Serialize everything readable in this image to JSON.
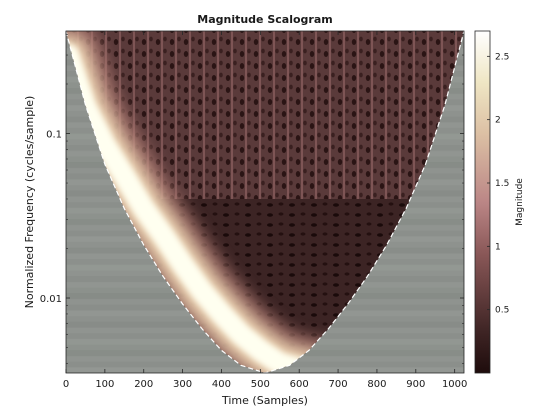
{
  "chart_data": {
    "type": "heatmap",
    "title": "Magnitude Scalogram",
    "xlabel": "Time (Samples)",
    "ylabel": "Normalized Frequency  (cycles/sample)",
    "x_scale": "linear",
    "y_scale": "log",
    "xlim": [
      0,
      1024
    ],
    "ylim": [
      0.0035,
      0.42
    ],
    "x_ticks": [
      0,
      100,
      200,
      300,
      400,
      500,
      600,
      700,
      800,
      900,
      1000
    ],
    "y_ticks": [
      {
        "value": 0.01,
        "label": "0.01"
      },
      {
        "value": 0.1,
        "label": "0.1"
      }
    ],
    "colorbar": {
      "label": "Magnitude",
      "range": [
        0,
        2.7
      ],
      "ticks": [
        0.5,
        1,
        1.5,
        2,
        2.5
      ],
      "colormap": "pink"
    },
    "ridge": {
      "description_free_values": true,
      "time": [
        5,
        50,
        100,
        150,
        200,
        250,
        300,
        350,
        400,
        450,
        500,
        550,
        600,
        650
      ],
      "frequency": [
        0.3,
        0.145,
        0.085,
        0.055,
        0.035,
        0.024,
        0.016,
        0.011,
        0.008,
        0.006,
        0.0048,
        0.004,
        0.0037,
        0.0035
      ],
      "peak_magnitude": 2.7
    },
    "cone_of_influence": {
      "time": [
        0,
        50,
        100,
        150,
        200,
        250,
        300,
        350,
        400,
        450,
        512,
        575,
        625,
        675,
        725,
        775,
        825,
        875,
        925,
        975,
        1024
      ],
      "frequency": [
        0.42,
        0.15,
        0.065,
        0.035,
        0.021,
        0.0135,
        0.0092,
        0.0065,
        0.0048,
        0.0039,
        0.0035,
        0.0039,
        0.0048,
        0.0065,
        0.0092,
        0.0135,
        0.021,
        0.035,
        0.065,
        0.15,
        0.42
      ]
    }
  },
  "colors": {
    "background_region": "#8e928e",
    "low_magnitude": "#1e0c0c",
    "mid_magnitude": "#9c6a6a",
    "high_magnitude": "#ffffe8",
    "coi_line": "#ffffff"
  }
}
